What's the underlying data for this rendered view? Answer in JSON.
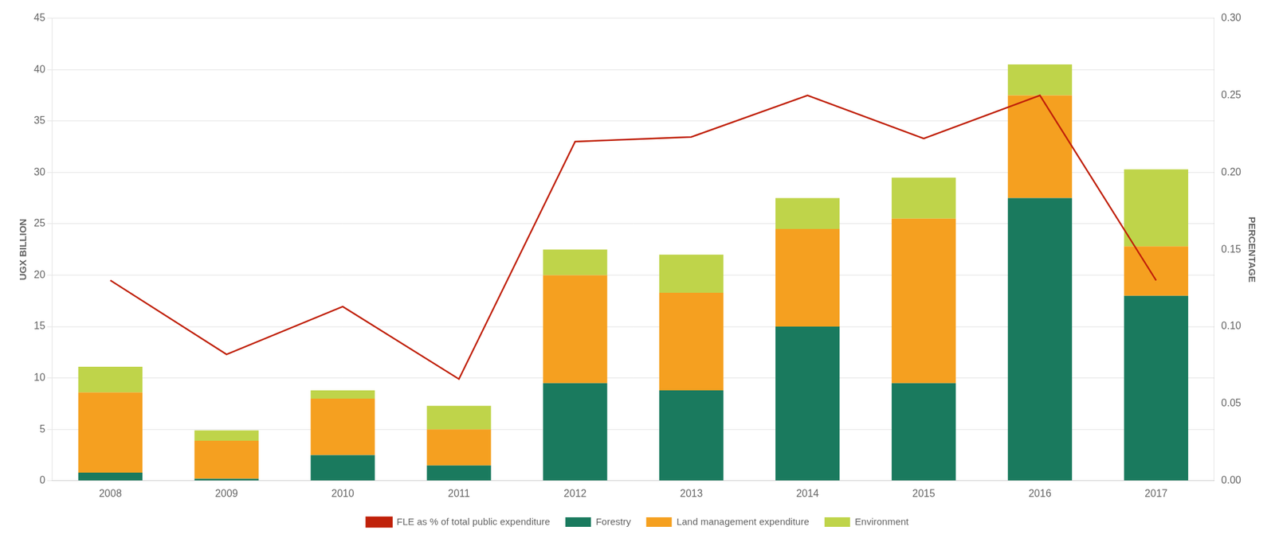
{
  "chart_data": {
    "type": "bar",
    "stacked": true,
    "categories": [
      "2008",
      "2009",
      "2010",
      "2011",
      "2012",
      "2013",
      "2014",
      "2015",
      "2016",
      "2017"
    ],
    "series": [
      {
        "name": "Forestry",
        "color": "#1a7a5e",
        "values": [
          0.8,
          0.2,
          2.5,
          1.5,
          9.5,
          8.8,
          15.0,
          9.5,
          27.5,
          18.0
        ]
      },
      {
        "name": "Land management expenditure",
        "color": "#f5a020",
        "values": [
          7.8,
          3.7,
          5.5,
          3.5,
          10.5,
          9.5,
          9.5,
          16.0,
          10.0,
          4.8
        ]
      },
      {
        "name": "Environment",
        "color": "#bfd44a",
        "values": [
          2.5,
          1.0,
          0.8,
          2.3,
          2.5,
          3.7,
          3.0,
          4.0,
          3.0,
          7.5
        ]
      },
      {
        "name": "FLE as % of total public expenditure",
        "type": "line",
        "axis": "y2",
        "marker": "none",
        "color": "#c0210a",
        "values": [
          0.13,
          0.082,
          0.113,
          0.066,
          0.22,
          0.223,
          0.25,
          0.222,
          0.25,
          0.13
        ]
      }
    ],
    "ylabel": "UGX BILLION",
    "y2label": "PERCENTAGE",
    "ylim": [
      0,
      45
    ],
    "yticks": [
      0,
      5,
      10,
      15,
      20,
      25,
      30,
      35,
      40,
      45
    ],
    "y2lim": [
      0,
      0.3
    ],
    "y2ticks": [
      {
        "value": 0,
        "label": "0.00"
      },
      {
        "value": 0.05,
        "label": "0.05"
      },
      {
        "value": 0.1,
        "label": "0.10"
      },
      {
        "value": 0.15,
        "label": "0.15"
      },
      {
        "value": 0.2,
        "label": "0.20"
      },
      {
        "value": 0.25,
        "label": "0.25"
      },
      {
        "value": 0.3,
        "label": "0.30"
      }
    ],
    "grid": true,
    "legend": "bottom"
  }
}
